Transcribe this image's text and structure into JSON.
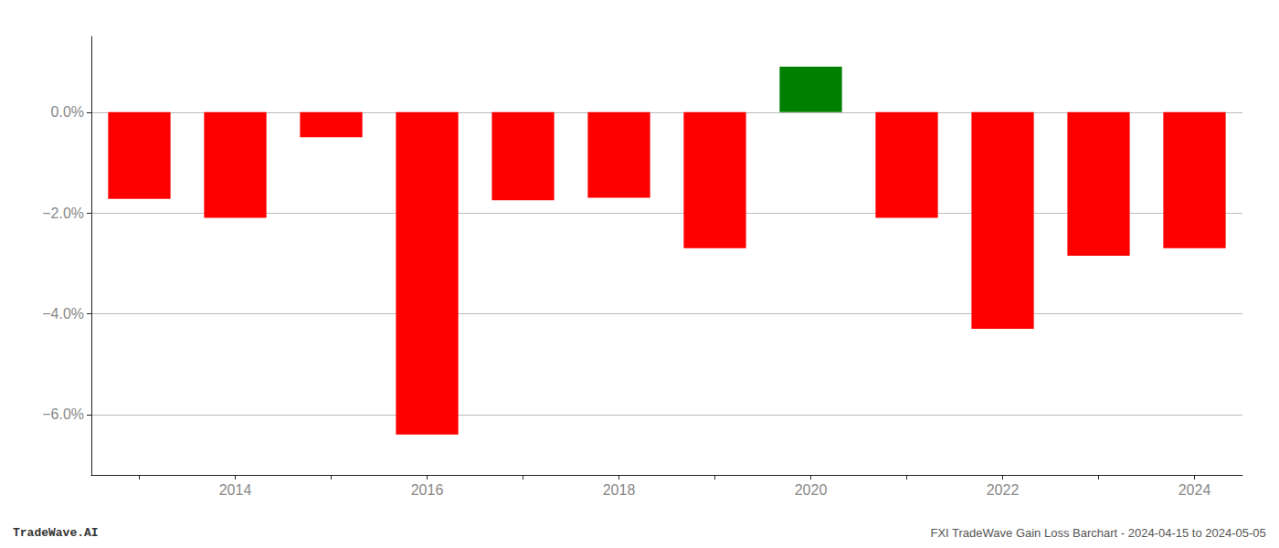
{
  "chart_data": {
    "type": "bar",
    "categories": [
      null,
      "2014",
      null,
      "2016",
      null,
      "2018",
      null,
      "2020",
      null,
      "2022",
      null,
      "2024"
    ],
    "values": [
      -1.72,
      -2.1,
      -0.5,
      -6.4,
      -1.75,
      -1.7,
      -2.7,
      0.9,
      -2.1,
      -4.3,
      -2.85,
      -2.7
    ],
    "colors": [
      "#FF0000",
      "#FF0000",
      "#FF0000",
      "#FF0000",
      "#FF0000",
      "#FF0000",
      "#FF0000",
      "#008000",
      "#FF0000",
      "#FF0000",
      "#FF0000",
      "#FF0000"
    ],
    "ylim": [
      -7.2,
      1.5
    ],
    "yticks": [
      {
        "value": 0.0,
        "label": "0.0%"
      },
      {
        "value": -2.0,
        "label": "−2.0%"
      },
      {
        "value": -4.0,
        "label": "−4.0%"
      },
      {
        "value": -6.0,
        "label": "−6.0%"
      }
    ],
    "grid": true,
    "annotations": [
      "TradeWave.AI",
      "FXI TradeWave Gain Loss Barchart - 2024-04-15 to 2024-05-05"
    ]
  }
}
